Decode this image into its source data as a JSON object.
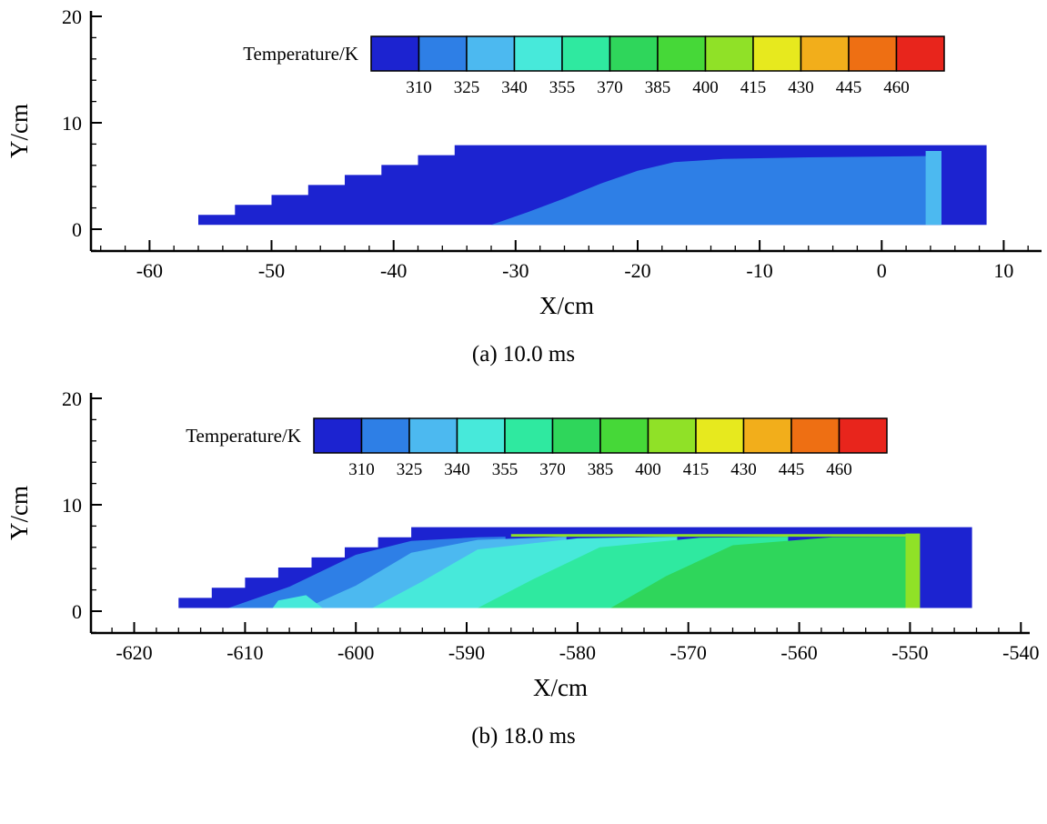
{
  "chart_data": [
    {
      "type": "heatmap",
      "panel": "a",
      "title": "(a) 10.0 ms",
      "time_label": "10.0 ms",
      "xlabel": "X/cm",
      "ylabel": "Y/cm",
      "xlim": [
        -64.8,
        13.1
      ],
      "ylim": [
        -2,
        20.5
      ],
      "x_ticks": [
        -60,
        -50,
        -40,
        -30,
        -20,
        -10,
        0,
        10
      ],
      "y_ticks": [
        0,
        10,
        20
      ],
      "grid": false,
      "legend_position": "top-inside",
      "colorbar": {
        "title": "Temperature/K",
        "tick_labels": [
          310,
          325,
          340,
          355,
          370,
          385,
          400,
          415,
          430,
          445,
          460
        ],
        "colors": [
          "#1c23d0",
          "#2e7fe6",
          "#4cb9f0",
          "#47e9da",
          "#2fe9a0",
          "#2fd65b",
          "#46d838",
          "#90e127",
          "#e7e91e",
          "#f2ae1b",
          "#ee6f13",
          "#e8251c"
        ]
      },
      "regions": [
        {
          "name": "wedge-base-below-310K",
          "temp_band_K": "<310",
          "color_index": 0,
          "points": [
            [
              -59,
              0.4
            ],
            [
              -56,
              0.4
            ],
            [
              -56,
              1.34
            ],
            [
              -53,
              1.34
            ],
            [
              -53,
              2.28
            ],
            [
              -50,
              2.28
            ],
            [
              -50,
              3.21
            ],
            [
              -47,
              3.21
            ],
            [
              -47,
              4.15
            ],
            [
              -44,
              4.15
            ],
            [
              -44,
              5.09
            ],
            [
              -41,
              5.09
            ],
            [
              -41,
              6.03
            ],
            [
              -38,
              6.03
            ],
            [
              -38,
              6.96
            ],
            [
              -35,
              6.96
            ],
            [
              -35,
              7.9
            ],
            [
              8.6,
              7.9
            ],
            [
              8.6,
              0.4
            ]
          ]
        },
        {
          "name": "band-310-325",
          "temp_band_K": "310-325",
          "color_index": 1,
          "points": [
            [
              -32,
              0.4
            ],
            [
              -29,
              1.6
            ],
            [
              -26,
              2.9
            ],
            [
              -23,
              4.3
            ],
            [
              -20,
              5.5
            ],
            [
              -17,
              6.3
            ],
            [
              -13,
              6.6
            ],
            [
              -6,
              6.75
            ],
            [
              2,
              6.85
            ],
            [
              4.9,
              6.9
            ],
            [
              4.9,
              0.4
            ]
          ]
        },
        {
          "name": "band-325-340-strip",
          "temp_band_K": "325-340",
          "color_index": 2,
          "points": [
            [
              3.6,
              0.4
            ],
            [
              4.9,
              0.4
            ],
            [
              4.9,
              7.35
            ],
            [
              3.6,
              7.35
            ]
          ]
        }
      ]
    },
    {
      "type": "heatmap",
      "panel": "b",
      "title": "(b) 18.0 ms",
      "time_label": "18.0 ms",
      "xlabel": "X/cm",
      "ylabel": "Y/cm",
      "xlim": [
        -623.9,
        -539.2
      ],
      "ylim": [
        -2,
        20.5
      ],
      "x_ticks": [
        -620,
        -610,
        -600,
        -590,
        -580,
        -570,
        -560,
        -550,
        -540
      ],
      "y_ticks": [
        0,
        10,
        20
      ],
      "grid": false,
      "legend_position": "top-inside",
      "colorbar": {
        "title": "Temperature/K",
        "tick_labels": [
          310,
          325,
          340,
          355,
          370,
          385,
          400,
          415,
          430,
          445,
          460
        ],
        "colors": [
          "#1c23d0",
          "#2e7fe6",
          "#4cb9f0",
          "#47e9da",
          "#2fe9a0",
          "#2fd65b",
          "#46d838",
          "#90e127",
          "#e7e91e",
          "#f2ae1b",
          "#ee6f13",
          "#e8251c"
        ]
      },
      "regions": [
        {
          "name": "wedge-base-below-310K",
          "temp_band_K": "<310",
          "color_index": 0,
          "points": [
            [
              -619,
              0.3
            ],
            [
              -616,
              0.3
            ],
            [
              -616,
              1.25
            ],
            [
              -613,
              1.25
            ],
            [
              -613,
              2.2
            ],
            [
              -610,
              2.2
            ],
            [
              -610,
              3.15
            ],
            [
              -607,
              3.15
            ],
            [
              -607,
              4.1
            ],
            [
              -604,
              4.1
            ],
            [
              -604,
              5.05
            ],
            [
              -601,
              5.05
            ],
            [
              -601,
              6.0
            ],
            [
              -598,
              6.0
            ],
            [
              -598,
              6.95
            ],
            [
              -595,
              6.95
            ],
            [
              -595,
              7.9
            ],
            [
              -544.4,
              7.9
            ],
            [
              -544.4,
              0.3
            ]
          ]
        },
        {
          "name": "band-310-325",
          "temp_band_K": "310-325",
          "color_index": 1,
          "points": [
            [
              -611.5,
              0.3
            ],
            [
              -606,
              2.3
            ],
            [
              -600,
              5.3
            ],
            [
              -595,
              6.6
            ],
            [
              -589,
              6.95
            ],
            [
              -586.5,
              7.0
            ],
            [
              -586.5,
              0.3
            ]
          ]
        },
        {
          "name": "band-325-340",
          "temp_band_K": "325-340",
          "color_index": 2,
          "points": [
            [
              -604.5,
              0.3
            ],
            [
              -600,
              2.4
            ],
            [
              -595,
              5.5
            ],
            [
              -589,
              6.7
            ],
            [
              -581,
              7.0
            ],
            [
              -581,
              0.3
            ]
          ]
        },
        {
          "name": "band-340-355",
          "temp_band_K": "340-355",
          "color_index": 3,
          "points": [
            [
              -598.5,
              0.3
            ],
            [
              -594,
              2.8
            ],
            [
              -589,
              5.8
            ],
            [
              -580,
              6.85
            ],
            [
              -571,
              7.0
            ],
            [
              -571,
              0.3
            ]
          ]
        },
        {
          "name": "cyan-patch-lower-left",
          "temp_band_K": "340-355",
          "color_index": 3,
          "points": [
            [
              -607.5,
              0.3
            ],
            [
              -603,
              0.3
            ],
            [
              -604.5,
              1.5
            ],
            [
              -607,
              1.0
            ]
          ]
        },
        {
          "name": "band-355-370",
          "temp_band_K": "355-370",
          "color_index": 4,
          "points": [
            [
              -589,
              0.3
            ],
            [
              -584,
              3.0
            ],
            [
              -578,
              6.0
            ],
            [
              -569,
              6.9
            ],
            [
              -561,
              7.0
            ],
            [
              -561,
              0.3
            ]
          ]
        },
        {
          "name": "band-370-385",
          "temp_band_K": "370-385",
          "color_index": 5,
          "points": [
            [
              -577,
              0.3
            ],
            [
              -572,
              3.3
            ],
            [
              -566,
              6.2
            ],
            [
              -557,
              6.95
            ],
            [
              -549.8,
              7.0
            ],
            [
              -549.8,
              0.3
            ]
          ]
        },
        {
          "name": "top-edge-line-400-415",
          "temp_band_K": "400-415",
          "color_index": 7,
          "points": [
            [
              -586,
              7.0
            ],
            [
              -549.2,
              7.0
            ],
            [
              -549.2,
              7.25
            ],
            [
              -586,
              7.25
            ]
          ]
        },
        {
          "name": "right-edge-strip-400-415",
          "temp_band_K": "400-415",
          "color_index": 7,
          "points": [
            [
              -550.4,
              0.3
            ],
            [
              -549.1,
              0.3
            ],
            [
              -549.1,
              7.3
            ],
            [
              -550.4,
              7.3
            ]
          ]
        }
      ]
    }
  ]
}
